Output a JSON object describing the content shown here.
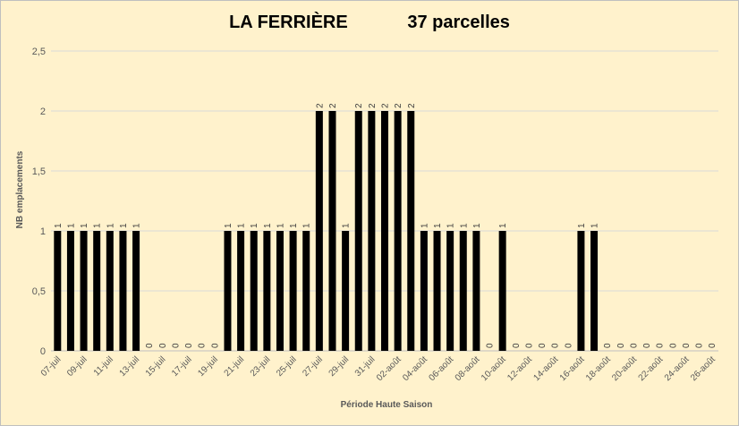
{
  "chart_data": {
    "type": "bar",
    "title": "LA FERRIÈRE            37 parcelles",
    "xlabel": "Période Haute Saison",
    "ylabel": "NB emplacements",
    "ylim": [
      0,
      2.5
    ],
    "yticks": [
      "0",
      "0,5",
      "1",
      "1,5",
      "2",
      "2,5"
    ],
    "ytick_values": [
      0,
      0.5,
      1,
      1.5,
      2,
      2.5
    ],
    "grid": true,
    "bar_color": "#000000",
    "grid_color": "#D9D9D9",
    "categories": [
      "07-juil",
      "08-juil",
      "09-juil",
      "10-juil",
      "11-juil",
      "12-juil",
      "13-juil",
      "14-juil",
      "15-juil",
      "16-juil",
      "17-juil",
      "18-juil",
      "19-juil",
      "20-juil",
      "21-juil",
      "22-juil",
      "23-juil",
      "24-juil",
      "25-juil",
      "26-juil",
      "27-juil",
      "28-juil",
      "29-juil",
      "30-juil",
      "31-juil",
      "01-août",
      "02-août",
      "03-août",
      "04-août",
      "05-août",
      "06-août",
      "07-août",
      "08-août",
      "09-août",
      "10-août",
      "11-août",
      "12-août",
      "13-août",
      "14-août",
      "15-août",
      "16-août",
      "17-août",
      "18-août",
      "19-août",
      "20-août",
      "21-août",
      "22-août",
      "23-août",
      "24-août",
      "25-août",
      "26-août"
    ],
    "values": [
      1,
      1,
      1,
      1,
      1,
      1,
      1,
      0,
      0,
      0,
      0,
      0,
      0,
      1,
      1,
      1,
      1,
      1,
      1,
      1,
      2,
      2,
      1,
      2,
      2,
      2,
      2,
      2,
      1,
      1,
      1,
      1,
      1,
      0,
      1,
      0,
      0,
      0,
      0,
      0,
      1,
      1,
      0,
      0,
      0,
      0,
      0,
      0,
      0,
      0,
      0
    ],
    "data_labels": [
      "1",
      "1",
      "1",
      "1",
      "1",
      "1",
      "1",
      "0",
      "0",
      "0",
      "0",
      "0",
      "0",
      "1",
      "1",
      "1",
      "1",
      "1",
      "1",
      "1",
      "2",
      "2",
      "1",
      "2",
      "2",
      "2",
      "2",
      "2",
      "1",
      "1",
      "1",
      "1",
      "1",
      "0",
      "1",
      "0",
      "0",
      "0",
      "0",
      "0",
      "1",
      "1",
      "0",
      "0",
      "0",
      "0",
      "0",
      "0",
      "0",
      "0",
      "0"
    ],
    "xtick_labels": [
      "07-juil",
      "09-juil",
      "11-juil",
      "13-juil",
      "15-juil",
      "17-juil",
      "19-juil",
      "21-juil",
      "23-juil",
      "25-juil",
      "27-juil",
      "29-juil",
      "31-juil",
      "02-août",
      "04-août",
      "06-août",
      "08-août",
      "10-août",
      "12-août",
      "14-août",
      "16-août",
      "18-août",
      "20-août",
      "22-août",
      "24-août",
      "26-août"
    ]
  }
}
